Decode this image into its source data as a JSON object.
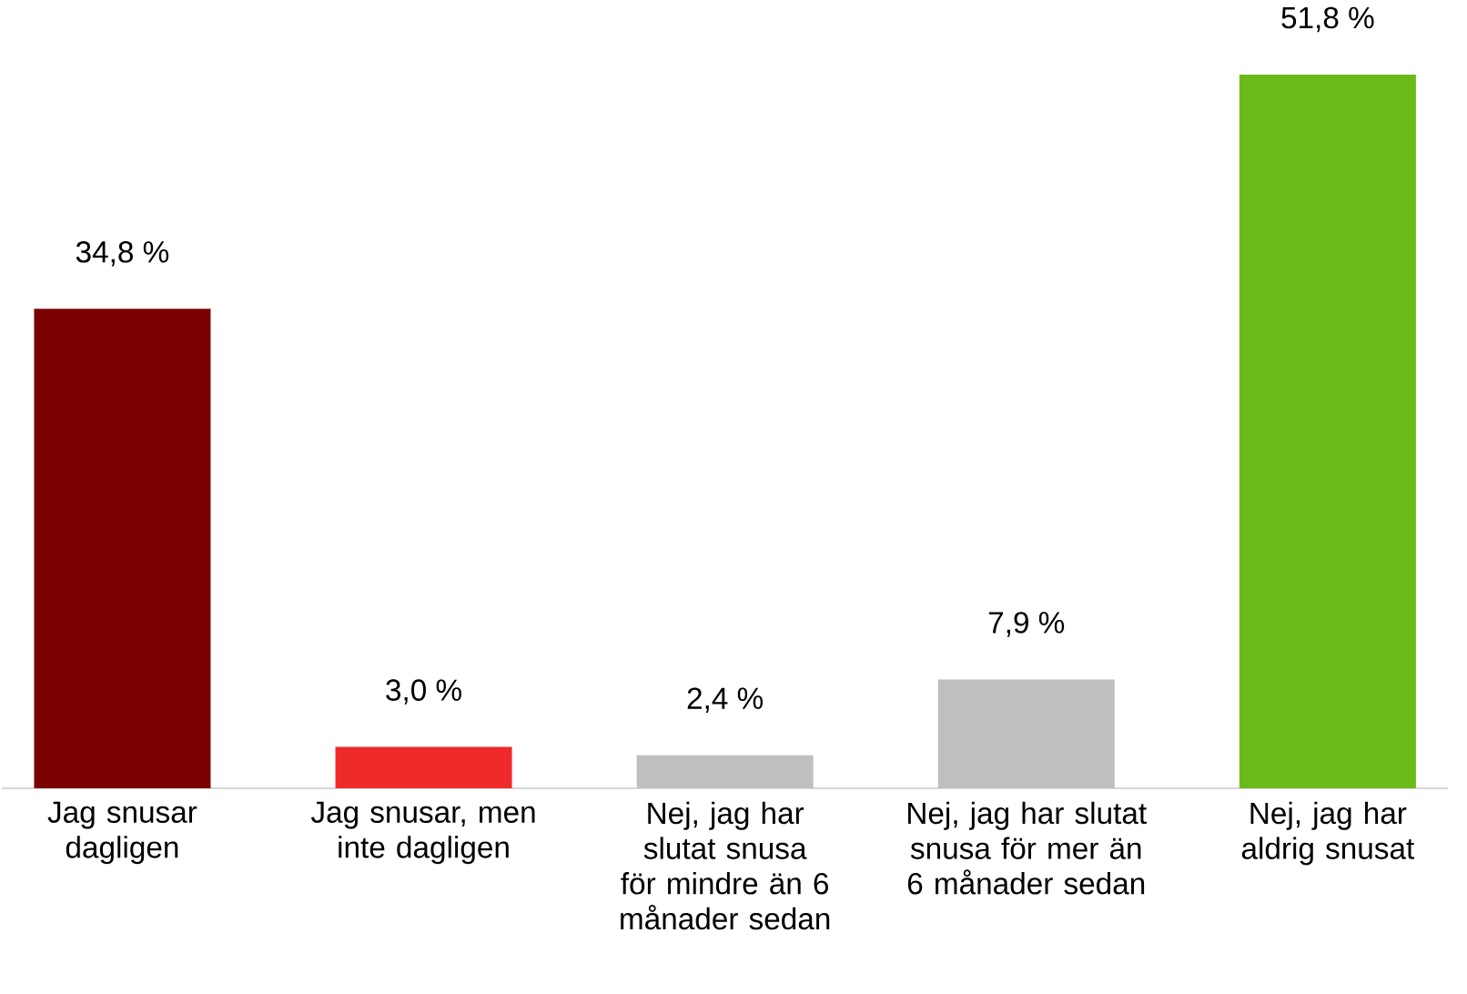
{
  "chart_data": {
    "type": "bar",
    "categories": [
      "Jag snusar dagligen",
      "Jag snusar, men inte dagligen",
      "Nej, jag har slutat snusa för mindre än 6 månader sedan",
      "Nej, jag har slutat snusa för mer än 6 månader sedan",
      "Nej, jag har aldrig snusat"
    ],
    "values": [
      34.8,
      3.0,
      2.4,
      7.9,
      51.8
    ],
    "colors": [
      "#7b0000",
      "#ee2a2a",
      "#bfbfbf",
      "#bfbfbf",
      "#6aba1a"
    ],
    "value_labels": [
      "34,8 %",
      "3,0 %",
      "2,4 %",
      "7,9 %",
      "51,8 %"
    ]
  }
}
